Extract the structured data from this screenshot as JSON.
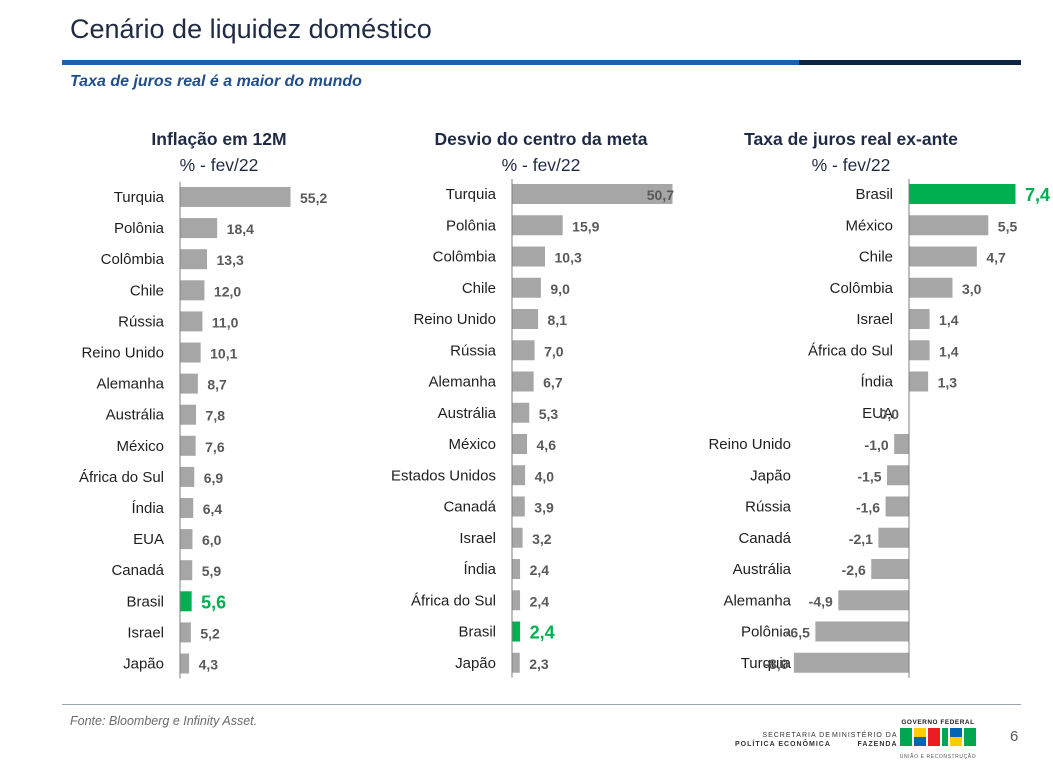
{
  "header": {
    "title": "Cenário de liquidez doméstico",
    "subtitle": "Taxa de juros real é a maior do mundo"
  },
  "colors": {
    "bar": "#a6a6a6",
    "highlight": "#00b050",
    "title": "#1f2a44",
    "accent_blue": "#1f5fa8"
  },
  "chart_data": [
    {
      "type": "bar",
      "orientation": "horizontal",
      "title": "Inflação em 12M",
      "subtitle": "% - fev/22",
      "highlight": "Brasil",
      "categories": [
        "Turquia",
        "Polônia",
        "Colômbia",
        "Chile",
        "Rússia",
        "Reino Unido",
        "Alemanha",
        "Austrália",
        "México",
        "África do Sul",
        "Índia",
        "EUA",
        "Canadá",
        "Brasil",
        "Israel",
        "Japão"
      ],
      "values": [
        55.2,
        18.4,
        13.3,
        12.0,
        11.0,
        10.1,
        8.7,
        7.8,
        7.6,
        6.9,
        6.4,
        6.0,
        5.9,
        5.6,
        5.2,
        4.3
      ],
      "labels": [
        "55,2",
        "18,4",
        "13,3",
        "12,0",
        "11,0",
        "10,1",
        "8,7",
        "7,8",
        "7,6",
        "6,9",
        "6,4",
        "6,0",
        "5,9",
        "5,6",
        "5,2",
        "4,3"
      ]
    },
    {
      "type": "bar",
      "orientation": "horizontal",
      "title": "Desvio do centro da meta",
      "subtitle": "% - fev/22",
      "highlight": "Brasil",
      "categories": [
        "Turquia",
        "Polônia",
        "Colômbia",
        "Chile",
        "Reino Unido",
        "Rússia",
        "Alemanha",
        "Austrália",
        "México",
        "Estados Unidos",
        "Canadá",
        "Israel",
        "Índia",
        "África do Sul",
        "Brasil",
        "Japão"
      ],
      "values": [
        50.7,
        15.9,
        10.3,
        9.0,
        8.1,
        7.0,
        6.7,
        5.3,
        4.6,
        4.0,
        3.9,
        3.2,
        2.4,
        2.4,
        2.4,
        2.3
      ],
      "labels": [
        "50,7",
        "15,9",
        "10,3",
        "9,0",
        "8,1",
        "7,0",
        "6,7",
        "5,3",
        "4,6",
        "4,0",
        "3,9",
        "3,2",
        "2,4",
        "2,4",
        "2,4",
        "2,3"
      ]
    },
    {
      "type": "bar",
      "orientation": "horizontal",
      "title": "Taxa de juros real ex-ante",
      "subtitle": "% - fev/22",
      "highlight": "Brasil",
      "categories": [
        "Brasil",
        "México",
        "Chile",
        "Colômbia",
        "Israel",
        "África do Sul",
        "Índia",
        "EUA",
        "Reino Unido",
        "Japão",
        "Rússia",
        "Canadá",
        "Austrália",
        "Alemanha",
        "Polônia",
        "Turquia"
      ],
      "values": [
        7.4,
        5.5,
        4.7,
        3.0,
        1.4,
        1.4,
        1.3,
        0.0,
        -1.0,
        -1.5,
        -1.6,
        -2.1,
        -2.6,
        -4.9,
        -6.5,
        -8.0
      ],
      "labels": [
        "7,4",
        "5,5",
        "4,7",
        "3,0",
        "1,4",
        "1,4",
        "1,3",
        "0,0",
        "-1,0",
        "-1,5",
        "-1,6",
        "-2,1",
        "-2,6",
        "-4,9",
        "-6,5",
        "-8,0"
      ]
    }
  ],
  "footer": {
    "source": "Fonte: Bloomberg e Infinity Asset.",
    "org1_line1": "SECRETARIA DE",
    "org1_line2": "POLÍTICA ECONÔMICA",
    "org2_line1": "MINISTÉRIO DA",
    "org2_line2": "FAZENDA",
    "gov_top": "GOVERNO FEDERAL",
    "gov_logo_text": "BRASIL",
    "gov_bottom": "UNIÃO E RECONSTRUÇÃO",
    "page_number": "6"
  }
}
